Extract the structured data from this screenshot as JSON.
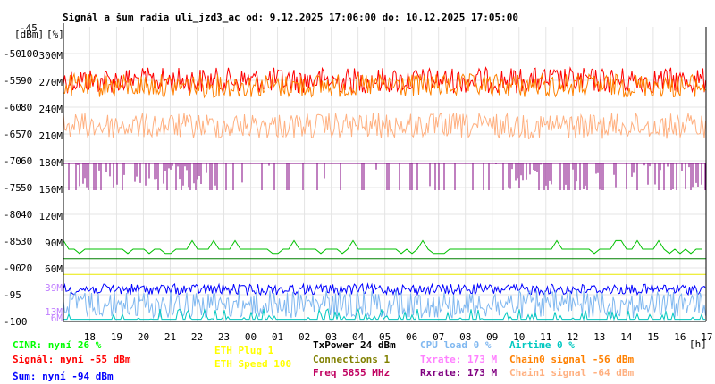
{
  "chart_data": {
    "type": "line",
    "title": "Signál a šum radia uli_jzd3_ac od: 9.12.2025 17:06:00 do: 10.12.2025 17:05:00",
    "axis_header": {
      "top_value": "-45",
      "dbm_unit": "[dBm]",
      "pct_unit": "[%]"
    },
    "xlabel_unit": "[h]",
    "x_ticks": [
      "18",
      "19",
      "20",
      "21",
      "22",
      "23",
      "00",
      "01",
      "02",
      "03",
      "04",
      "05",
      "06",
      "07",
      "08",
      "09",
      "10",
      "11",
      "12",
      "13",
      "14",
      "15",
      "16",
      "17"
    ],
    "y_dbm_ticks": [
      "-50",
      "-55",
      "-60",
      "-65",
      "-70",
      "-75",
      "-80",
      "-85",
      "-90",
      "-95",
      "-100"
    ],
    "y_dbm_values": [
      -50,
      -55,
      -60,
      -65,
      -70,
      -75,
      -80,
      -85,
      -90,
      -95,
      -100
    ],
    "y_pct_ticks": [
      "100",
      "90",
      "80",
      "70",
      "60",
      "50",
      "40",
      "30",
      "20"
    ],
    "y_rate_ticks": [
      "300M",
      "270M",
      "240M",
      "210M",
      "180M",
      "150M",
      "120M",
      "90M",
      "60M",
      "39M",
      "13M",
      "6M"
    ],
    "ylim_dbm": [
      -100,
      -45
    ],
    "grid": true,
    "series": [
      {
        "name": "Signál",
        "color": "#ff0000",
        "axis": "dbm",
        "value": -55,
        "spread": 1.2,
        "style": "noisy"
      },
      {
        "name": "Chain0 signal",
        "color": "#ff8000",
        "axis": "dbm",
        "value": -56,
        "spread": 1.1,
        "style": "noisy"
      },
      {
        "name": "Chain1 signal",
        "color": "#ffb080",
        "axis": "dbm",
        "value": -63.5,
        "spread": 1.2,
        "style": "noisy"
      },
      {
        "name": "Šum",
        "color": "#0000ff",
        "axis": "dbm",
        "value": -94,
        "spread": 0.5,
        "style": "noisy"
      },
      {
        "name": "Txrate",
        "color": "#800080",
        "axis": "dbm",
        "value": -73,
        "spread": 0,
        "style": "drops"
      },
      {
        "name": "CINR",
        "color": "#00c000",
        "axis": "dbm",
        "value": -86.5,
        "spread": 0.4,
        "style": "step"
      },
      {
        "name": "ETH Speed",
        "color": "#e8e800",
        "axis": "dbm",
        "value": -91.2,
        "spread": 0,
        "style": "flat"
      },
      {
        "name": "Connections",
        "color": "#008000",
        "axis": "dbm",
        "value": -88.3,
        "spread": 0,
        "style": "flat"
      },
      {
        "name": "CPU load",
        "color": "#80b8f0",
        "axis": "dbm",
        "value": -96.8,
        "spread": 1.3,
        "style": "noisy"
      },
      {
        "name": "Airtime",
        "color": "#00c8c0",
        "axis": "dbm",
        "value": -99.6,
        "spread": 0.5,
        "style": "spikes"
      }
    ]
  },
  "legend": {
    "col1": [
      {
        "text": "CINR: nyní 26 %",
        "color": "#00ff00"
      },
      {
        "text": "Signál: nyní -55 dBm",
        "color": "#ff0000"
      },
      {
        "text": "Šum: nyní -94 dBm",
        "color": "#0000ff"
      }
    ],
    "col2": [
      {
        "text": "ETH Plug 1",
        "color": "#ffff00"
      },
      {
        "text": "ETH Speed 100",
        "color": "#ffff00"
      }
    ],
    "col3": [
      {
        "text": "TxPower 24 dBm",
        "color": "#000000"
      },
      {
        "text": "Connections 1",
        "color": "#808000"
      },
      {
        "text": "Freq 5855 MHz",
        "color": "#c00060"
      }
    ],
    "col4": [
      {
        "text": "CPU load 0 %",
        "color": "#80b8f0"
      },
      {
        "text": "Txrate: 173 M",
        "color": "#ff80ff"
      },
      {
        "text": "Rxrate: 173 M",
        "color": "#800080"
      }
    ],
    "col5": [
      {
        "text": "Airtime 0 %",
        "color": "#00c8c0"
      },
      {
        "text": "Chain0 signal -56 dBm",
        "color": "#ff8000"
      },
      {
        "text": "Chain1 signal -64 dBm",
        "color": "#ffb080"
      }
    ]
  }
}
